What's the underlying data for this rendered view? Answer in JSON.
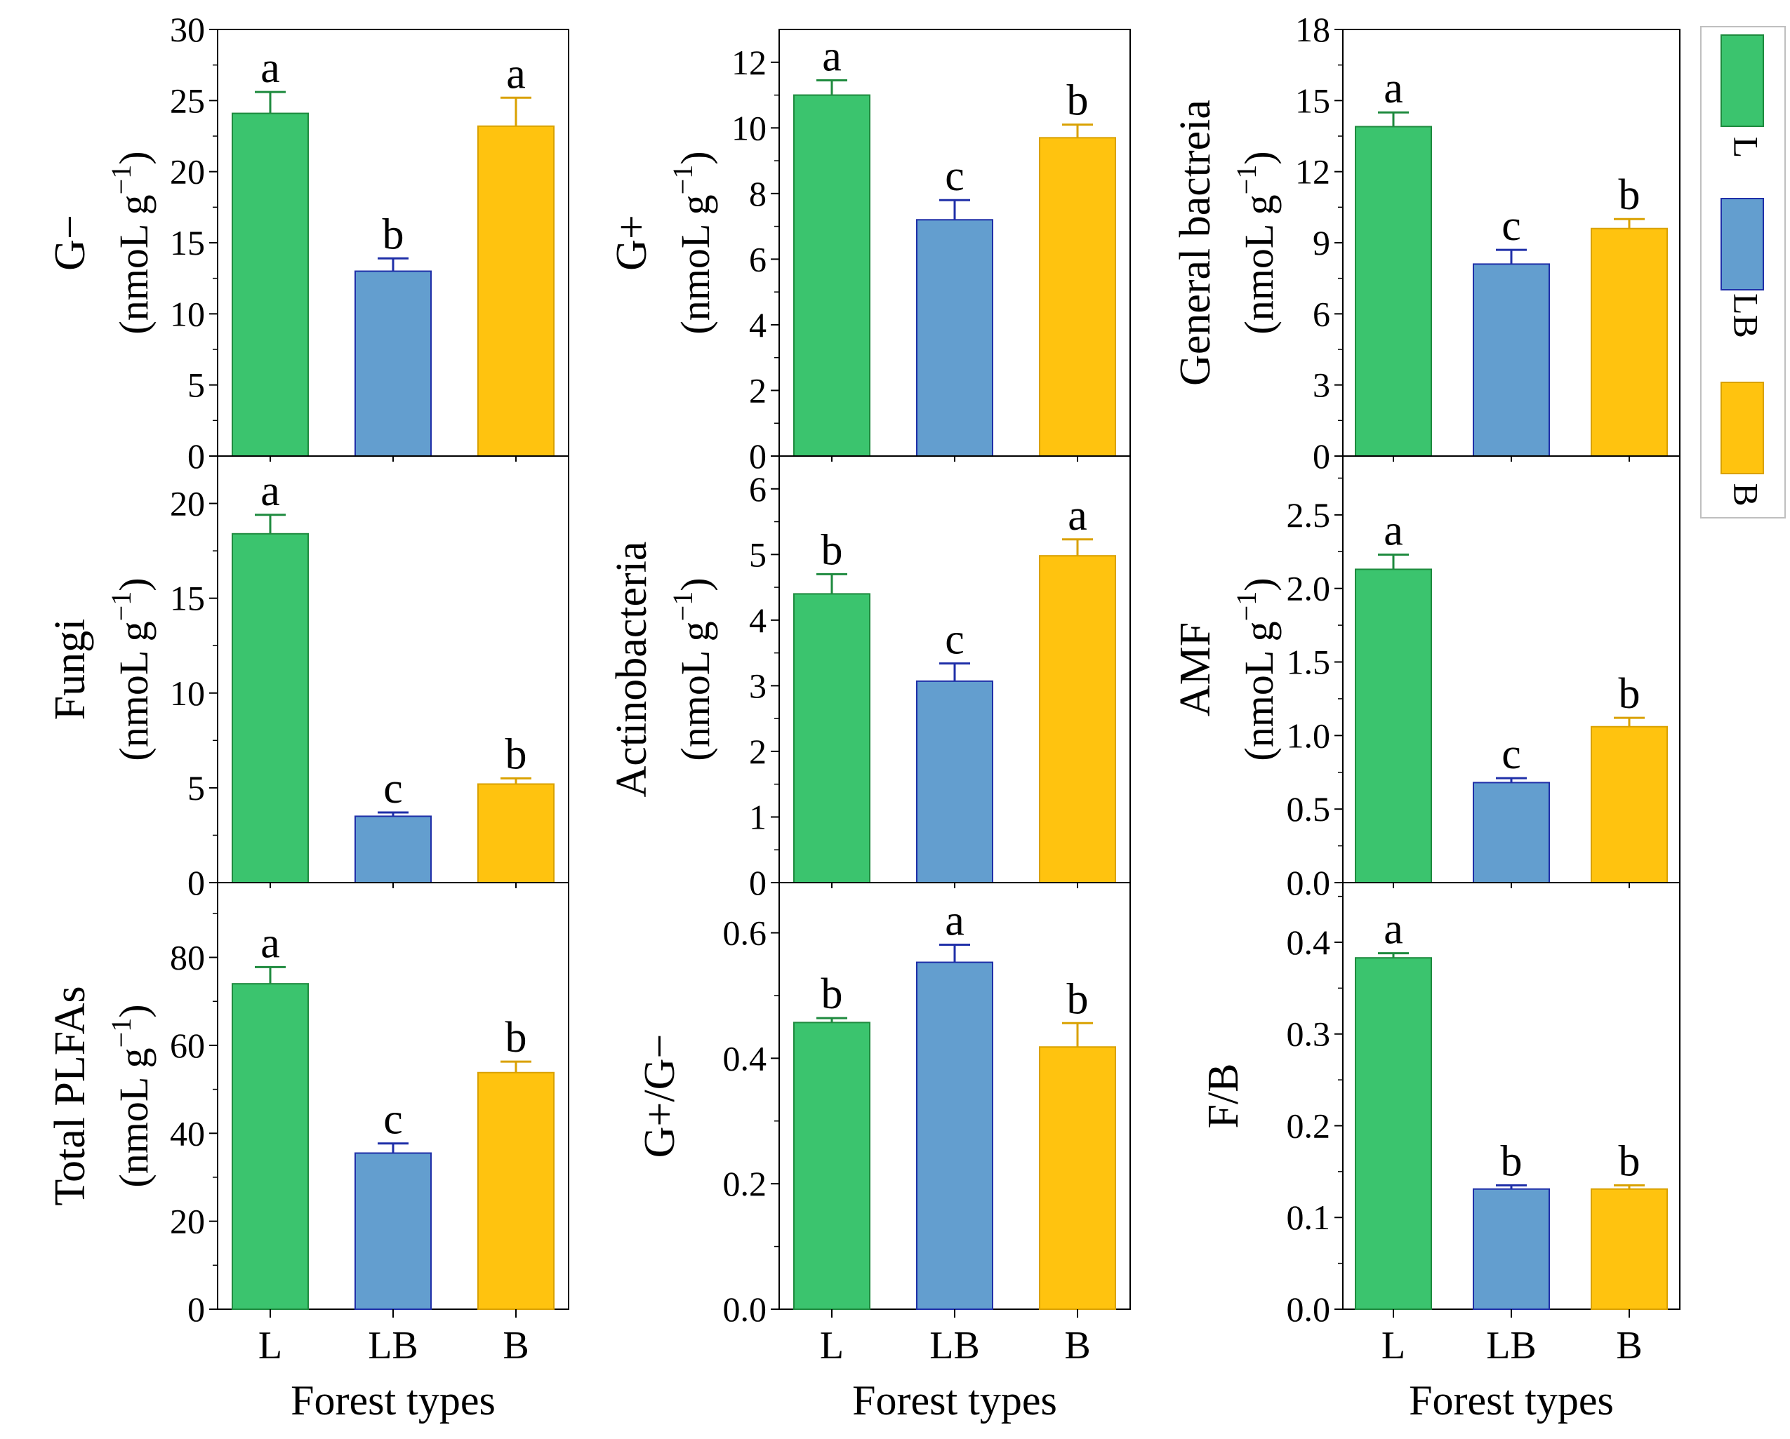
{
  "legend": {
    "entries": [
      {
        "label": "L",
        "color": "#3BC46E",
        "edge": "#1E8A3E"
      },
      {
        "label": "LB",
        "color": "#639ECF",
        "edge": "#1F2FA8"
      },
      {
        "label": "B",
        "color": "#FFC30F",
        "edge": "#D9A100"
      }
    ]
  },
  "chart_data": [
    {
      "type": "bar",
      "row": 0,
      "col": 0,
      "ylabel": "G−",
      "unit": "(nmoL g",
      "unit_exp": "−1",
      "unit_close": ")",
      "categories": [
        "L",
        "LB",
        "B"
      ],
      "values": [
        24.1,
        13.0,
        23.2
      ],
      "errors": [
        1.5,
        0.9,
        2.0
      ],
      "letters": [
        "a",
        "b",
        "a"
      ],
      "ylim": [
        0,
        30
      ],
      "yticks": [
        "0",
        "5",
        "10",
        "15",
        "20",
        "25",
        "30"
      ],
      "xlabel": ""
    },
    {
      "type": "bar",
      "row": 0,
      "col": 1,
      "ylabel": "G+",
      "unit": "(nmoL g",
      "unit_exp": "−1",
      "unit_close": ")",
      "categories": [
        "L",
        "LB",
        "B"
      ],
      "values": [
        11.0,
        7.2,
        9.7
      ],
      "errors": [
        0.45,
        0.6,
        0.4
      ],
      "letters": [
        "a",
        "c",
        "b"
      ],
      "ylim": [
        0,
        13
      ],
      "yticks": [
        "0",
        "2",
        "4",
        "6",
        "8",
        "10",
        "12"
      ],
      "xlabel": ""
    },
    {
      "type": "bar",
      "row": 0,
      "col": 2,
      "ylabel": "General bactreia",
      "unit": "(nmoL g",
      "unit_exp": "−1",
      "unit_close": ")",
      "categories": [
        "L",
        "LB",
        "B"
      ],
      "values": [
        13.9,
        8.1,
        9.6
      ],
      "errors": [
        0.6,
        0.6,
        0.4
      ],
      "letters": [
        "a",
        "c",
        "b"
      ],
      "ylim": [
        0,
        18
      ],
      "yticks": [
        "0",
        "3",
        "6",
        "9",
        "12",
        "15",
        "18"
      ],
      "xlabel": ""
    },
    {
      "type": "bar",
      "row": 1,
      "col": 0,
      "ylabel": "Fungi",
      "unit": "(nmoL g",
      "unit_exp": "−1",
      "unit_close": ")",
      "categories": [
        "L",
        "LB",
        "B"
      ],
      "values": [
        18.4,
        3.5,
        5.2
      ],
      "errors": [
        1.0,
        0.2,
        0.3
      ],
      "letters": [
        "a",
        "c",
        "b"
      ],
      "ylim": [
        0,
        22.5
      ],
      "yticks": [
        "0",
        "5",
        "10",
        "15",
        "20"
      ],
      "xlabel": ""
    },
    {
      "type": "bar",
      "row": 1,
      "col": 1,
      "ylabel": "Actinobacteria",
      "unit": "(nmoL g",
      "unit_exp": "−1",
      "unit_close": ")",
      "categories": [
        "L",
        "LB",
        "B"
      ],
      "values": [
        4.4,
        3.07,
        4.98
      ],
      "errors": [
        0.3,
        0.27,
        0.25
      ],
      "letters": [
        "b",
        "c",
        "a"
      ],
      "ylim": [
        0,
        6.5
      ],
      "yticks": [
        "0",
        "1",
        "2",
        "3",
        "4",
        "5",
        "6"
      ],
      "xlabel": ""
    },
    {
      "type": "bar",
      "row": 1,
      "col": 2,
      "ylabel": "AMF",
      "unit": "(nmoL g",
      "unit_exp": "−1",
      "unit_close": ")",
      "categories": [
        "L",
        "LB",
        "B"
      ],
      "values": [
        2.13,
        0.68,
        1.06
      ],
      "errors": [
        0.1,
        0.03,
        0.06
      ],
      "letters": [
        "a",
        "c",
        "b"
      ],
      "ylim": [
        0,
        2.9
      ],
      "yticks": [
        "0.0",
        "0.5",
        "1.0",
        "1.5",
        "2.0",
        "2.5"
      ],
      "xlabel": ""
    },
    {
      "type": "bar",
      "row": 2,
      "col": 0,
      "ylabel": "Total PLFAs",
      "unit": "(nmoL g",
      "unit_exp": "−1",
      "unit_close": ")",
      "categories": [
        "L",
        "LB",
        "B"
      ],
      "values": [
        74.0,
        35.5,
        53.8
      ],
      "errors": [
        3.8,
        2.2,
        2.5
      ],
      "letters": [
        "a",
        "c",
        "b"
      ],
      "ylim": [
        0,
        97
      ],
      "yticks": [
        "0",
        "20",
        "40",
        "60",
        "80"
      ],
      "xlabel": "Forest types"
    },
    {
      "type": "bar",
      "row": 2,
      "col": 1,
      "ylabel": "G+/G−",
      "unit": "",
      "unit_exp": "",
      "unit_close": "",
      "categories": [
        "L",
        "LB",
        "B"
      ],
      "values": [
        0.457,
        0.553,
        0.418
      ],
      "errors": [
        0.007,
        0.028,
        0.038
      ],
      "letters": [
        "b",
        "a",
        "b"
      ],
      "ylim": [
        0,
        0.68
      ],
      "yticks": [
        "0.0",
        "0.2",
        "0.4",
        "0.6"
      ],
      "xlabel": "Forest types"
    },
    {
      "type": "bar",
      "row": 2,
      "col": 2,
      "ylabel": "F/B",
      "unit": "",
      "unit_exp": "",
      "unit_close": "",
      "categories": [
        "L",
        "LB",
        "B"
      ],
      "values": [
        0.383,
        0.131,
        0.131
      ],
      "errors": [
        0.005,
        0.004,
        0.004
      ],
      "letters": [
        "a",
        "b",
        "b"
      ],
      "ylim": [
        0,
        0.465
      ],
      "yticks": [
        "0.0",
        "0.1",
        "0.2",
        "0.3",
        "0.4"
      ],
      "xlabel": "Forest types"
    }
  ]
}
